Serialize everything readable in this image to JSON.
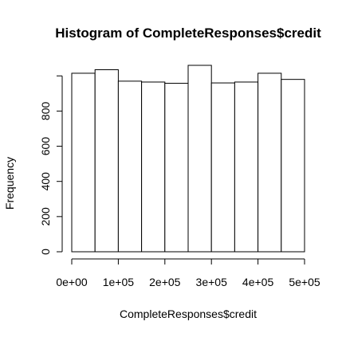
{
  "chart_data": {
    "type": "bar",
    "title": "Histogram of CompleteResponses$credit",
    "xlabel": "CompleteResponses$credit",
    "ylabel": "Frequency",
    "bin_edges": [
      0,
      50000,
      100000,
      150000,
      200000,
      250000,
      300000,
      350000,
      400000,
      450000,
      500000
    ],
    "values": [
      1015,
      1035,
      970,
      965,
      958,
      1060,
      960,
      965,
      1015,
      980
    ],
    "xlim": [
      0,
      500000
    ],
    "ylim": [
      0,
      1060
    ],
    "x_ticks": [
      0,
      100000,
      200000,
      300000,
      400000,
      500000
    ],
    "x_tick_labels": [
      "0e+00",
      "1e+05",
      "2e+05",
      "3e+05",
      "4e+05",
      "5e+05"
    ],
    "y_ticks": [
      0,
      200,
      400,
      600,
      800
    ],
    "y_tick_labels": [
      "0",
      "200",
      "400",
      "600",
      "800"
    ],
    "grid": false,
    "legend": "none",
    "colors": {
      "bar_fill": "#ffffff",
      "bar_stroke": "#000000"
    }
  }
}
